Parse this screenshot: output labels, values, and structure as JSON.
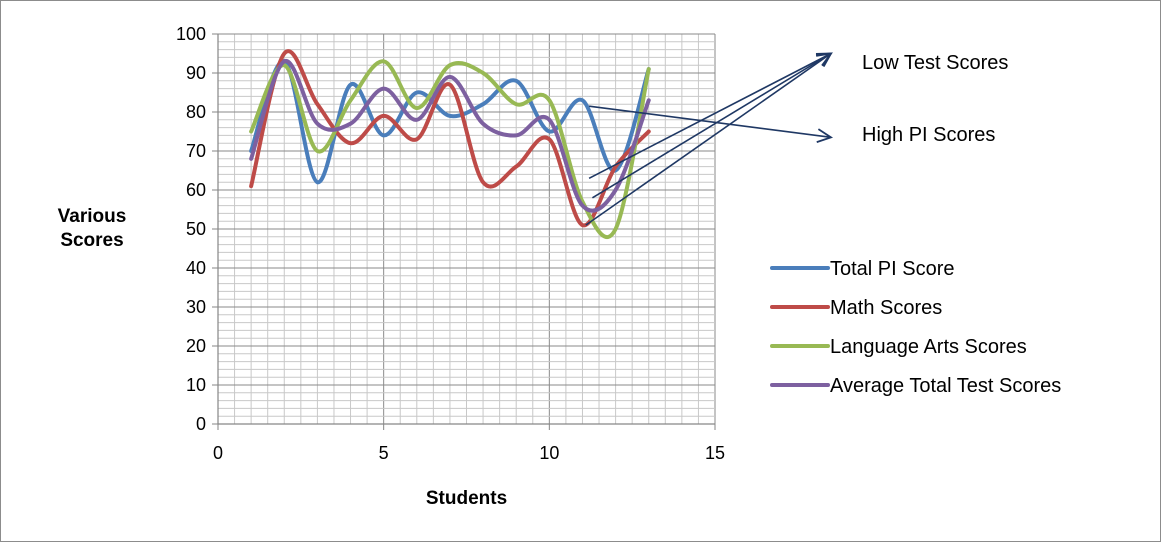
{
  "chart_data": {
    "type": "line",
    "smooth": true,
    "xlabel": "Students",
    "ylabel_lines": [
      "Various",
      "Scores"
    ],
    "xlim": [
      0,
      15
    ],
    "ylim": [
      0,
      100
    ],
    "xticks": [
      0,
      5,
      10,
      15
    ],
    "yticks": [
      0,
      10,
      20,
      30,
      40,
      50,
      60,
      70,
      80,
      90,
      100
    ],
    "grid": "major and minor",
    "legend_position": "right",
    "x": [
      1,
      2,
      3,
      4,
      5,
      6,
      7,
      8,
      9,
      10,
      11,
      12,
      13
    ],
    "series": [
      {
        "name": "Total PI Score",
        "color": "#4a7ebb",
        "values": [
          70,
          93,
          62,
          87,
          74,
          85,
          79,
          82,
          88,
          75,
          83,
          65,
          91
        ]
      },
      {
        "name": "Math Scores",
        "color": "#be4b48",
        "values": [
          61,
          95,
          82,
          72,
          79,
          73,
          87,
          62,
          66,
          73,
          51,
          66,
          75
        ]
      },
      {
        "name": "Language Arts Scores",
        "color": "#98b954",
        "values": [
          75,
          92,
          70,
          83,
          93,
          81,
          92,
          90,
          82,
          83,
          57,
          50,
          91
        ]
      },
      {
        "name": "Average Total Test Scores",
        "color": "#7d60a0",
        "values": [
          68,
          93,
          77,
          77,
          86,
          78,
          89,
          77,
          74,
          78,
          56,
          60,
          83
        ]
      }
    ],
    "annotations": [
      {
        "text": "Low Test Scores",
        "target": [
          18.5,
          95
        ],
        "sources": [
          [
            11.2,
            63
          ],
          [
            11.3,
            58
          ],
          [
            11.1,
            51
          ]
        ]
      },
      {
        "text": "High PI Scores",
        "target": [
          18.5,
          73.5
        ],
        "sources": [
          [
            11.2,
            81.5
          ]
        ]
      }
    ],
    "annotation_color": "#1f3864"
  }
}
